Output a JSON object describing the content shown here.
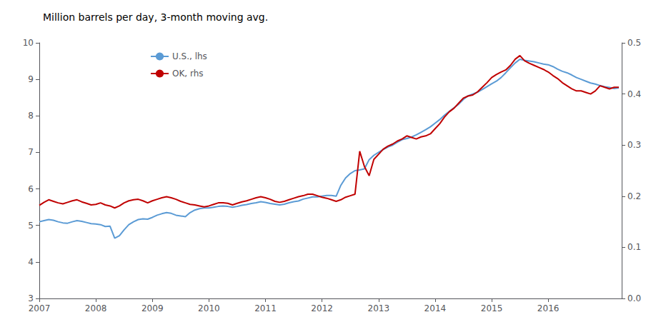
{
  "chart_data": {
    "type": "line",
    "title": "Million barrels per day, 3-month moving avg.",
    "x": [
      2007.0,
      2007.0833333333333,
      2007.1666666666667,
      2007.25,
      2007.3333333333333,
      2007.4166666666667,
      2007.5,
      2007.5833333333333,
      2007.6666666666667,
      2007.75,
      2007.8333333333333,
      2007.9166666666667,
      2008.0,
      2008.0833333333333,
      2008.1666666666667,
      2008.25,
      2008.3333333333333,
      2008.4166666666667,
      2008.5,
      2008.5833333333333,
      2008.6666666666667,
      2008.75,
      2008.8333333333333,
      2008.9166666666667,
      2009.0,
      2009.0833333333333,
      2009.1666666666667,
      2009.25,
      2009.3333333333333,
      2009.4166666666667,
      2009.5,
      2009.5833333333333,
      2009.6666666666667,
      2009.75,
      2009.8333333333333,
      2009.9166666666667,
      2010.0,
      2010.0833333333333,
      2010.1666666666667,
      2010.25,
      2010.3333333333333,
      2010.4166666666667,
      2010.5,
      2010.5833333333333,
      2010.6666666666667,
      2010.75,
      2010.8333333333333,
      2010.9166666666667,
      2011.0,
      2011.0833333333333,
      2011.1666666666667,
      2011.25,
      2011.3333333333333,
      2011.4166666666667,
      2011.5,
      2011.5833333333333,
      2011.6666666666667,
      2011.75,
      2011.8333333333333,
      2011.9166666666667,
      2012.0,
      2012.0833333333333,
      2012.1666666666667,
      2012.25,
      2012.3333333333333,
      2012.4166666666667,
      2012.5,
      2012.5833333333333,
      2012.6666666666667,
      2012.75,
      2012.8333333333333,
      2012.9166666666667,
      2013.0,
      2013.0833333333333,
      2013.1666666666667,
      2013.25,
      2013.3333333333333,
      2013.4166666666667,
      2013.5,
      2013.5833333333333,
      2013.6666666666667,
      2013.75,
      2013.8333333333333,
      2013.9166666666667,
      2014.0,
      2014.0833333333333,
      2014.1666666666667,
      2014.25,
      2014.3333333333333,
      2014.4166666666667,
      2014.5,
      2014.5833333333333,
      2014.6666666666667,
      2014.75,
      2014.8333333333333,
      2014.9166666666667,
      2015.0,
      2015.0833333333333,
      2015.1666666666667,
      2015.25,
      2015.3333333333333,
      2015.4166666666667,
      2015.5,
      2015.5833333333333,
      2015.6666666666667,
      2015.75,
      2015.8333333333333,
      2015.9166666666667,
      2016.0,
      2016.0833333333333,
      2016.1666666666667,
      2016.25,
      2016.3333333333333,
      2016.4166666666667,
      2016.5,
      2016.5833333333333,
      2016.6666666666667,
      2016.75,
      2016.8333333333333,
      2016.9166666666667,
      2017.0,
      2017.0833333333333,
      2017.1666666666667,
      2017.25
    ],
    "xlim": [
      2007.0,
      2017.3
    ],
    "xticks": [
      2007,
      2008,
      2009,
      2010,
      2011,
      2012,
      2013,
      2014,
      2015,
      2016
    ],
    "ylim": [
      3,
      10
    ],
    "yticks": [
      3,
      4,
      5,
      6,
      7,
      8,
      9,
      10
    ],
    "y2lim": [
      0.0,
      0.5
    ],
    "y2ticks": [
      {
        "value": 0.0,
        "label": "0.0"
      },
      0.1,
      0.2,
      0.3,
      0.4,
      0.5
    ],
    "grid": false,
    "legend": "upper left",
    "series": [
      {
        "name": "U.S., lhs",
        "color": "#5B9BD5",
        "values": [
          5.1,
          5.13,
          5.16,
          5.14,
          5.1,
          5.07,
          5.06,
          5.1,
          5.13,
          5.11,
          5.08,
          5.05,
          5.04,
          5.02,
          4.97,
          4.98,
          4.65,
          4.72,
          4.88,
          5.02,
          5.1,
          5.16,
          5.18,
          5.17,
          5.22,
          5.28,
          5.32,
          5.35,
          5.33,
          5.28,
          5.26,
          5.24,
          5.35,
          5.42,
          5.46,
          5.48,
          5.48,
          5.5,
          5.52,
          5.53,
          5.52,
          5.5,
          5.52,
          5.55,
          5.57,
          5.6,
          5.62,
          5.65,
          5.63,
          5.6,
          5.58,
          5.56,
          5.58,
          5.62,
          5.65,
          5.67,
          5.72,
          5.75,
          5.78,
          5.78,
          5.8,
          5.82,
          5.82,
          5.8,
          6.1,
          6.3,
          6.42,
          6.5,
          6.52,
          6.55,
          6.8,
          6.92,
          7.0,
          7.08,
          7.15,
          7.2,
          7.28,
          7.35,
          7.38,
          7.42,
          7.48,
          7.55,
          7.62,
          7.7,
          7.8,
          7.9,
          8.02,
          8.12,
          8.22,
          8.32,
          8.45,
          8.55,
          8.6,
          8.65,
          8.72,
          8.8,
          8.88,
          8.95,
          9.05,
          9.18,
          9.32,
          9.45,
          9.55,
          9.52,
          9.5,
          9.48,
          9.45,
          9.42,
          9.4,
          9.35,
          9.28,
          9.22,
          9.18,
          9.12,
          9.05,
          9.0,
          8.95,
          8.9,
          8.87,
          8.83,
          8.8,
          8.78,
          8.75,
          8.77
        ]
      },
      {
        "name": "OK, rhs",
        "color": "#C00000",
        "axis": "y2",
        "values": [
          0.182,
          0.188,
          0.193,
          0.19,
          0.187,
          0.185,
          0.188,
          0.191,
          0.193,
          0.189,
          0.186,
          0.183,
          0.184,
          0.187,
          0.183,
          0.181,
          0.177,
          0.181,
          0.187,
          0.191,
          0.193,
          0.194,
          0.191,
          0.187,
          0.191,
          0.194,
          0.197,
          0.199,
          0.197,
          0.194,
          0.19,
          0.187,
          0.184,
          0.183,
          0.181,
          0.179,
          0.181,
          0.184,
          0.187,
          0.187,
          0.186,
          0.183,
          0.186,
          0.189,
          0.191,
          0.194,
          0.197,
          0.199,
          0.197,
          0.194,
          0.19,
          0.188,
          0.19,
          0.193,
          0.196,
          0.199,
          0.201,
          0.204,
          0.204,
          0.201,
          0.198,
          0.196,
          0.193,
          0.19,
          0.193,
          0.198,
          0.201,
          0.204,
          0.288,
          0.258,
          0.24,
          0.272,
          0.282,
          0.292,
          0.298,
          0.302,
          0.308,
          0.312,
          0.318,
          0.315,
          0.312,
          0.316,
          0.318,
          0.322,
          0.332,
          0.342,
          0.355,
          0.365,
          0.372,
          0.382,
          0.392,
          0.396,
          0.398,
          0.404,
          0.413,
          0.422,
          0.432,
          0.438,
          0.443,
          0.447,
          0.456,
          0.468,
          0.475,
          0.465,
          0.46,
          0.456,
          0.452,
          0.448,
          0.443,
          0.436,
          0.43,
          0.422,
          0.416,
          0.41,
          0.406,
          0.406,
          0.403,
          0.4,
          0.406,
          0.416,
          0.413,
          0.41,
          0.413,
          0.413
        ]
      }
    ]
  }
}
